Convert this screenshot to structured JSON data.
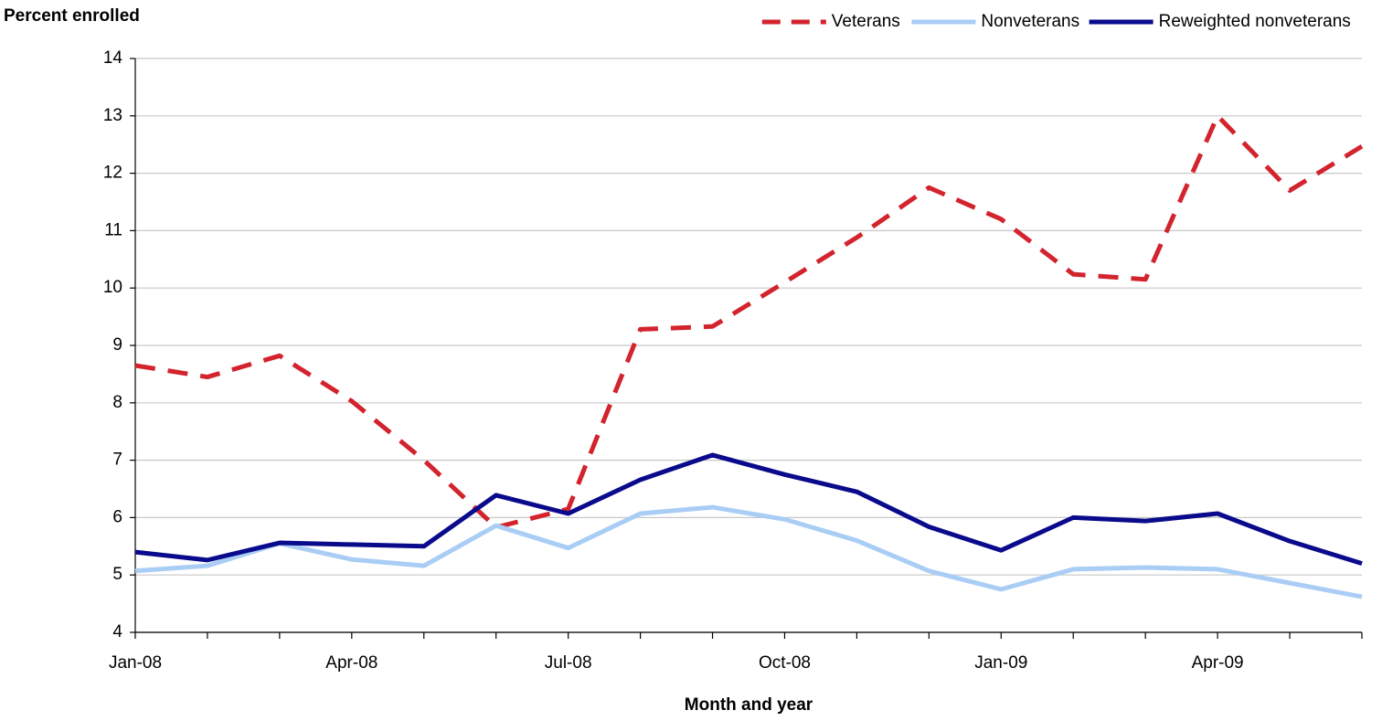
{
  "chart_data": {
    "type": "line",
    "y_label": "Percent enrolled",
    "x_label": "Month and year",
    "categories": [
      "Jan-08",
      null,
      null,
      "Apr-08",
      null,
      null,
      "Jul-08",
      null,
      null,
      "Oct-08",
      null,
      null,
      "Jan-09",
      null,
      null,
      "Apr-09",
      null,
      null
    ],
    "series": [
      {
        "name": "Veterans",
        "color": "#d3232d",
        "line_style": "dashed",
        "values": [
          8.65,
          8.45,
          8.82,
          8.03,
          7.0,
          5.83,
          6.15,
          9.28,
          9.33,
          10.1,
          10.88,
          11.75,
          11.2,
          10.24,
          10.15,
          13.0,
          11.7,
          12.47
        ]
      },
      {
        "name": "Nonveterans",
        "color": "#a9cdf5",
        "line_style": "solid",
        "values": [
          5.07,
          5.16,
          5.55,
          5.27,
          5.16,
          5.86,
          5.47,
          6.07,
          6.18,
          5.97,
          5.6,
          5.07,
          4.75,
          5.1,
          5.13,
          5.1,
          4.86,
          4.62
        ]
      },
      {
        "name": "Reweighted nonveterans",
        "color": "#0a0a8c",
        "line_style": "solid",
        "values": [
          5.4,
          5.26,
          5.56,
          5.53,
          5.5,
          6.39,
          6.07,
          6.66,
          7.09,
          6.75,
          6.45,
          5.84,
          5.43,
          6.0,
          5.94,
          6.07,
          5.59,
          5.2
        ]
      }
    ],
    "ylim": [
      4,
      14
    ],
    "yticks": [
      4,
      5,
      6,
      7,
      8,
      9,
      10,
      11,
      12,
      13,
      14
    ],
    "grid": true,
    "legend": "top-right"
  }
}
